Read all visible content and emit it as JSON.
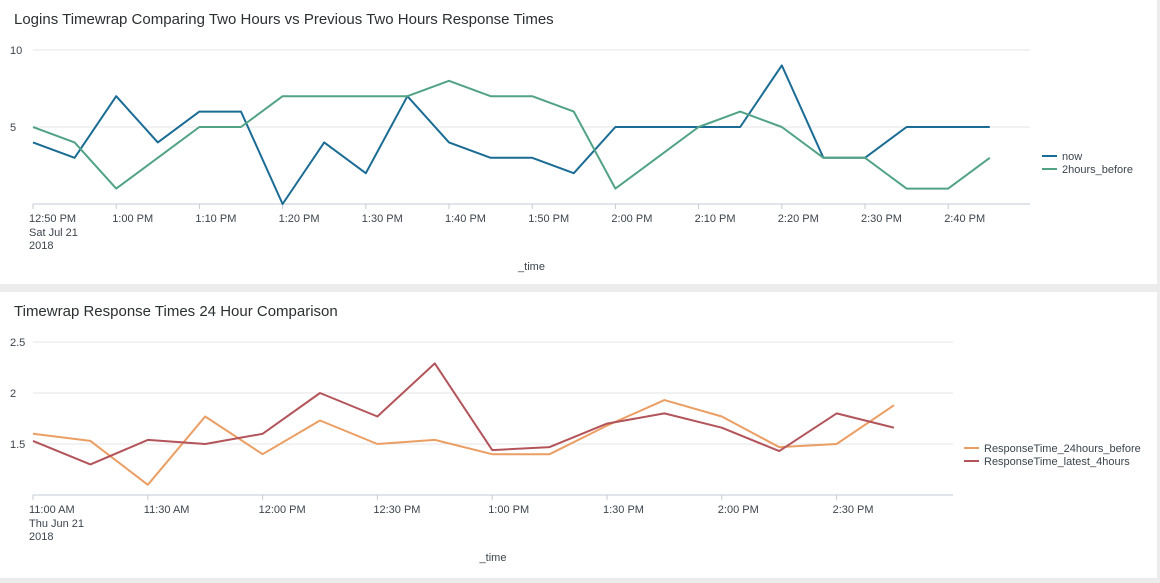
{
  "colors": {
    "background": "#ececec",
    "panel": "#ffffff",
    "grid": "#e6e6e6",
    "axis": "#c3cbd4",
    "text": "#3c444d"
  },
  "chart_data": [
    {
      "type": "line",
      "title": "Logins Timewrap Comparing Two Hours vs Previous Two Hours Response Times",
      "xlabel": "_time",
      "ylabel": "",
      "x": [
        "12:50 PM",
        "12:55 PM",
        "1:00 PM",
        "1:05 PM",
        "1:10 PM",
        "1:15 PM",
        "1:20 PM",
        "1:25 PM",
        "1:30 PM",
        "1:35 PM",
        "1:40 PM",
        "1:45 PM",
        "1:50 PM",
        "1:55 PM",
        "2:00 PM",
        "2:05 PM",
        "2:10 PM",
        "2:15 PM",
        "2:20 PM",
        "2:25 PM",
        "2:30 PM",
        "2:35 PM",
        "2:40 PM",
        "2:45 PM"
      ],
      "x_ticks": [
        "12:50 PM",
        "1:00 PM",
        "1:10 PM",
        "1:20 PM",
        "1:30 PM",
        "1:40 PM",
        "1:50 PM",
        "2:00 PM",
        "2:10 PM",
        "2:20 PM",
        "2:30 PM",
        "2:40 PM"
      ],
      "first_tick_sublabel": [
        "Sat Jul 21",
        "2018"
      ],
      "y_ticks": [
        "5",
        "10"
      ],
      "ylim": [
        0,
        10
      ],
      "grid": true,
      "legend_position": "right",
      "series": [
        {
          "name": "now",
          "color": "#1a6c94",
          "values": [
            4,
            3,
            7,
            4,
            6,
            6,
            0,
            4,
            2,
            7,
            4,
            3,
            3,
            2,
            5,
            5,
            5,
            5,
            9,
            3,
            3,
            5,
            5,
            5
          ]
        },
        {
          "name": "2hours_before",
          "color": "#52a386",
          "values": [
            5,
            4,
            1,
            3,
            5,
            5,
            7,
            7,
            7,
            7,
            8,
            7,
            7,
            6,
            1,
            3,
            5,
            6,
            5,
            3,
            3,
            1,
            1,
            3
          ]
        }
      ]
    },
    {
      "type": "line",
      "title": "Timewrap Response Times 24 Hour Comparison",
      "xlabel": "_time",
      "ylabel": "",
      "x": [
        "11:00 AM",
        "11:15 AM",
        "11:30 AM",
        "11:45 AM",
        "12:00 PM",
        "12:15 PM",
        "12:30 PM",
        "12:45 PM",
        "1:00 PM",
        "1:15 PM",
        "1:30 PM",
        "1:45 PM",
        "2:00 PM",
        "2:15 PM",
        "2:30 PM",
        "2:45 PM"
      ],
      "x_ticks": [
        "11:00 AM",
        "11:30 AM",
        "12:00 PM",
        "12:30 PM",
        "1:00 PM",
        "1:30 PM",
        "2:00 PM",
        "2:30 PM"
      ],
      "first_tick_sublabel": [
        "Thu Jun 21",
        "2018"
      ],
      "y_ticks": [
        "1.5",
        "2",
        "2.5"
      ],
      "ylim": [
        1.0,
        2.5
      ],
      "grid": true,
      "legend_position": "right",
      "series": [
        {
          "name": "ResponseTime_24hours_before",
          "color": "#eb9e63",
          "values": [
            1.6,
            1.53,
            1.1,
            1.77,
            1.4,
            1.73,
            1.5,
            1.54,
            1.4,
            1.4,
            1.68,
            1.93,
            1.77,
            1.47,
            1.5,
            1.88
          ]
        },
        {
          "name": "ResponseTime_latest_4hours",
          "color": "#b3545a",
          "values": [
            1.53,
            1.3,
            1.54,
            1.5,
            1.6,
            2.0,
            1.77,
            2.29,
            1.44,
            1.47,
            1.7,
            1.8,
            1.66,
            1.43,
            1.8,
            1.66
          ]
        }
      ]
    }
  ]
}
